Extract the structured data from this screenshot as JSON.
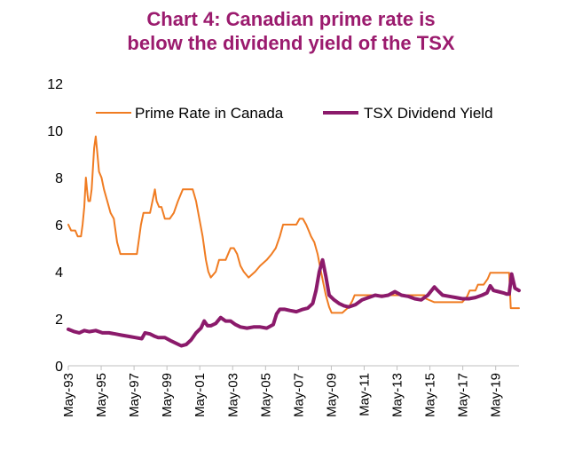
{
  "chart_data": {
    "type": "line",
    "title": [
      "Chart 4: Canadian prime rate is",
      "below the dividend yield of the TSX"
    ],
    "xlabel": "",
    "ylabel": "",
    "ylim": [
      0,
      12
    ],
    "yticks": [
      "0",
      "2",
      "4",
      "6",
      "8",
      "10",
      "12"
    ],
    "xlim": [
      1993.33,
      2020.75
    ],
    "xticks": [
      "May-93",
      "May-95",
      "May-97",
      "May-99",
      "May-01",
      "May-03",
      "May-05",
      "May-07",
      "May-09",
      "May-11",
      "May-13",
      "May-15",
      "May-17",
      "May-19"
    ],
    "grid": false,
    "legend_position": "top",
    "series": [
      {
        "name": "Prime Rate in Canada",
        "color": "#f07c22",
        "x": [
          1993.33,
          1993.5,
          1993.75,
          1993.9,
          1994.1,
          1994.2,
          1994.3,
          1994.4,
          1994.5,
          1994.55,
          1994.65,
          1994.75,
          1994.9,
          1995.0,
          1995.1,
          1995.2,
          1995.35,
          1995.5,
          1995.7,
          1995.9,
          1996.1,
          1996.3,
          1996.5,
          1996.7,
          1996.9,
          1997.0,
          1997.5,
          1997.75,
          1997.9,
          1998.05,
          1998.3,
          1998.6,
          1998.7,
          1998.85,
          1999.0,
          1999.2,
          1999.5,
          1999.75,
          2000.0,
          2000.3,
          2000.6,
          2000.9,
          2001.1,
          2001.3,
          2001.5,
          2001.7,
          2001.85,
          2002.0,
          2002.3,
          2002.5,
          2002.9,
          2003.2,
          2003.4,
          2003.6,
          2003.8,
          2004.0,
          2004.3,
          2004.7,
          2005.0,
          2005.4,
          2005.7,
          2005.95,
          2006.2,
          2006.4,
          2006.6,
          2007.2,
          2007.4,
          2007.6,
          2007.8,
          2007.95,
          2008.1,
          2008.3,
          2008.5,
          2008.7,
          2008.85,
          2009.0,
          2009.2,
          2009.35,
          2010.0,
          2010.4,
          2010.6,
          2010.75,
          2015.0,
          2015.1,
          2015.6,
          2016.0,
          2017.3,
          2017.6,
          2017.75,
          2018.1,
          2018.25,
          2018.6,
          2018.85,
          2019.0,
          2020.0,
          2020.15,
          2020.25,
          2020.75
        ],
        "y": [
          6.0,
          5.75,
          5.75,
          5.5,
          5.5,
          6.0,
          6.75,
          8.0,
          7.25,
          7.0,
          7.0,
          7.5,
          9.25,
          9.75,
          9.0,
          8.25,
          8.0,
          7.5,
          7.0,
          6.5,
          6.25,
          5.25,
          4.75,
          4.75,
          4.75,
          4.75,
          4.75,
          6.0,
          6.5,
          6.5,
          6.5,
          7.5,
          7.0,
          6.75,
          6.75,
          6.25,
          6.25,
          6.5,
          7.0,
          7.5,
          7.5,
          7.5,
          7.0,
          6.25,
          5.5,
          4.5,
          4.0,
          3.75,
          4.0,
          4.5,
          4.5,
          5.0,
          5.0,
          4.75,
          4.25,
          4.0,
          3.75,
          4.0,
          4.25,
          4.5,
          4.75,
          5.0,
          5.5,
          6.0,
          6.0,
          6.0,
          6.25,
          6.25,
          6.0,
          5.75,
          5.5,
          5.25,
          4.75,
          4.0,
          3.5,
          3.0,
          2.5,
          2.25,
          2.25,
          2.5,
          2.75,
          3.0,
          3.0,
          2.85,
          2.7,
          2.7,
          2.7,
          2.95,
          3.2,
          3.2,
          3.45,
          3.45,
          3.7,
          3.95,
          3.95,
          3.95,
          2.45,
          2.45
        ]
      },
      {
        "name": "TSX Dividend Yield",
        "color": "#8b1a6b",
        "x": [
          1993.33,
          1993.7,
          1994.0,
          1994.3,
          1994.6,
          1995.0,
          1995.4,
          1995.8,
          1996.2,
          1996.6,
          1997.0,
          1997.4,
          1997.8,
          1998.0,
          1998.3,
          1998.6,
          1998.8,
          1999.2,
          1999.6,
          1999.9,
          2000.2,
          2000.5,
          2000.8,
          2001.1,
          2001.4,
          2001.6,
          2001.8,
          2002.0,
          2002.3,
          2002.6,
          2002.9,
          2003.2,
          2003.5,
          2003.8,
          2004.2,
          2004.6,
          2005.0,
          2005.4,
          2005.8,
          2006.0,
          2006.2,
          2006.5,
          2006.8,
          2007.2,
          2007.6,
          2007.9,
          2008.2,
          2008.4,
          2008.6,
          2008.8,
          2009.0,
          2009.2,
          2009.5,
          2009.8,
          2010.1,
          2010.4,
          2010.8,
          2011.2,
          2011.6,
          2012.0,
          2012.4,
          2012.8,
          2013.2,
          2013.6,
          2014.0,
          2014.4,
          2014.8,
          2015.2,
          2015.6,
          2015.8,
          2016.1,
          2016.5,
          2016.9,
          2017.3,
          2017.7,
          2018.1,
          2018.5,
          2018.8,
          2019.0,
          2019.2,
          2019.5,
          2019.8,
          2020.0,
          2020.15,
          2020.3,
          2020.5,
          2020.75
        ],
        "y": [
          1.55,
          1.45,
          1.4,
          1.5,
          1.45,
          1.5,
          1.4,
          1.4,
          1.35,
          1.3,
          1.25,
          1.2,
          1.15,
          1.4,
          1.35,
          1.25,
          1.2,
          1.2,
          1.05,
          0.95,
          0.85,
          0.9,
          1.1,
          1.4,
          1.6,
          1.9,
          1.7,
          1.7,
          1.8,
          2.05,
          1.9,
          1.9,
          1.75,
          1.65,
          1.6,
          1.65,
          1.65,
          1.6,
          1.75,
          2.2,
          2.4,
          2.4,
          2.35,
          2.3,
          2.4,
          2.45,
          2.65,
          3.2,
          4.0,
          4.5,
          3.8,
          3.0,
          2.8,
          2.65,
          2.55,
          2.5,
          2.6,
          2.8,
          2.9,
          3.0,
          2.95,
          3.0,
          3.15,
          3.0,
          2.95,
          2.85,
          2.8,
          3.0,
          3.35,
          3.2,
          3.0,
          2.95,
          2.9,
          2.85,
          2.85,
          2.9,
          3.0,
          3.1,
          3.4,
          3.2,
          3.15,
          3.1,
          3.05,
          3.05,
          3.9,
          3.3,
          3.2
        ]
      }
    ]
  }
}
